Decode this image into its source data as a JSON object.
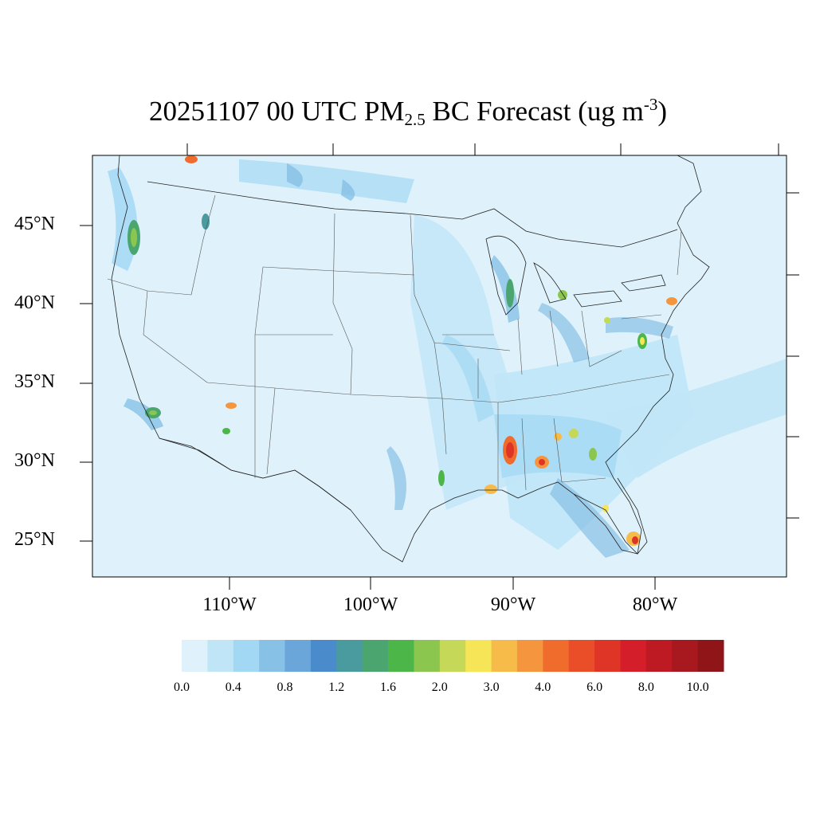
{
  "title": {
    "prefix": "20251107 00 UTC PM",
    "subscript": "2.5",
    "middle": " BC Forecast (ug m",
    "superscript": "-3",
    "suffix": ")"
  },
  "lat_labels": [
    "45°N",
    "40°N",
    "35°N",
    "30°N",
    "25°N"
  ],
  "lon_labels": [
    "110°W",
    "100°W",
    "90°W",
    "80°W"
  ],
  "colorbar": {
    "colors": [
      "#dff2fb",
      "#bfe5f7",
      "#a3d8f4",
      "#87c1e6",
      "#6aa6d9",
      "#4a8bcb",
      "#4a9ba0",
      "#4aa66e",
      "#4cb748",
      "#8bc64f",
      "#c5d857",
      "#f7e558",
      "#f7bb4a",
      "#f5963e",
      "#f06c2d",
      "#e94e29",
      "#df3526",
      "#d41f2a",
      "#bd1a24",
      "#a8181f",
      "#8f1519"
    ],
    "tick_labels": [
      "0.0",
      "0.4",
      "0.8",
      "1.2",
      "1.6",
      "2.0",
      "3.0",
      "4.0",
      "6.0",
      "8.0",
      "10.0"
    ]
  }
}
